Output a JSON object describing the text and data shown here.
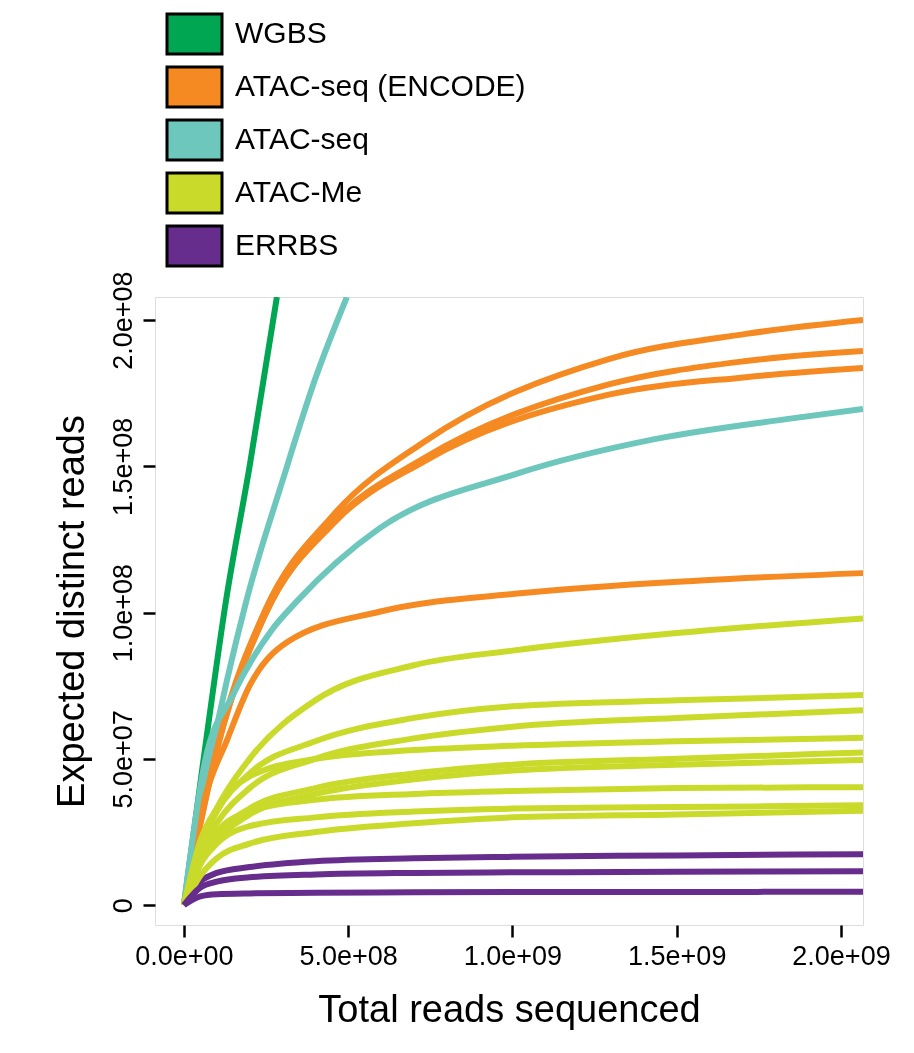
{
  "chart_data": {
    "type": "line",
    "xlabel": "Total reads sequenced",
    "ylabel": "Expected distinct reads",
    "xlim": [
      -88000000,
      2067000000
    ],
    "ylim": [
      -6800000,
      207900000
    ],
    "xticks": [
      {
        "value": 0,
        "label": "0.0e+00"
      },
      {
        "value": 500000000,
        "label": "5.0e+08"
      },
      {
        "value": 1000000000,
        "label": "1.0e+09"
      },
      {
        "value": 1500000000,
        "label": "1.5e+09"
      },
      {
        "value": 2000000000,
        "label": "2.0e+09"
      }
    ],
    "yticks": [
      {
        "value": 0,
        "label": "0"
      },
      {
        "value": 50000000,
        "label": "5.0e+07"
      },
      {
        "value": 100000000,
        "label": "1.0e+08"
      },
      {
        "value": 150000000,
        "label": "1.5e+08"
      },
      {
        "value": 200000000,
        "label": "2.0e+08"
      }
    ],
    "legend": "top left",
    "grid": false,
    "marker": "none",
    "line_style": "solid",
    "series": [
      {
        "name": "WGBS",
        "color": "#00a651",
        "x": [
          0,
          60000000,
          128000000,
          200000000,
          283000000
        ],
        "values": [
          0,
          50000000,
          104000000,
          150000000,
          207900000
        ]
      },
      {
        "name": "ATAC-seq (ENCODE)",
        "color": "#f58a23",
        "x": [
          0,
          107000000,
          246000000,
          455000000,
          734000000,
          1293000000,
          1711000000,
          2067000000
        ],
        "values": [
          0,
          57000000,
          100500000,
          133400000,
          158600000,
          186700000,
          195300000,
          200000000
        ]
      },
      {
        "name": "ATAC-seq",
        "color": "#6dc7bd",
        "x": [
          0,
          80000000,
          190000000,
          300000000,
          400000000,
          496000000
        ],
        "values": [
          0,
          50000000,
          104000000,
          145000000,
          180000000,
          207900000
        ]
      },
      {
        "name": "ATAC-Me",
        "color": "#c9da2a",
        "x": [
          0,
          50000000,
          100000000,
          200000000,
          400000000,
          700000000,
          1000000000,
          1500000000,
          2067000000
        ],
        "values": [
          0,
          20000000,
          33000000,
          50000000,
          70000000,
          82000000,
          87000000,
          93000000,
          98000000
        ]
      },
      {
        "name": "ERRBS",
        "color": "#662d8c",
        "x": [
          0,
          50000000,
          100000000,
          200000000,
          400000000,
          700000000,
          1000000000,
          1500000000,
          2067000000
        ],
        "values": [
          0,
          8000000,
          11000000,
          13000000,
          15000000,
          16000000,
          16500000,
          17000000,
          17400000
        ]
      },
      {
        "color": "#f58a23",
        "x": [
          0,
          107000000,
          246000000,
          455000000,
          734000000,
          1293000000,
          1711000000,
          2067000000
        ],
        "values": [
          0,
          56000000,
          99000000,
          131000000,
          153000000,
          178000000,
          186000000,
          189400000
        ]
      },
      {
        "color": "#f58a23",
        "x": [
          0,
          107000000,
          246000000,
          455000000,
          734000000,
          1293000000,
          1711000000,
          2067000000
        ],
        "values": [
          0,
          56000000,
          99000000,
          130500000,
          151900000,
          174500000,
          180500000,
          183600000
        ]
      },
      {
        "color": "#f58a23",
        "x": [
          0,
          60000000,
          134000000,
          200000000,
          316000000,
          595000000,
          1014000000,
          1572000000,
          2067000000
        ],
        "values": [
          0,
          35000000,
          57200000,
          75000000,
          90000000,
          100300000,
          106500000,
          111000000,
          113500000
        ]
      },
      {
        "color": "#6dc7bd",
        "x": [
          0,
          64000000,
          150000000,
          267000000,
          345000000,
          594000000,
          1014000000,
          1433000000,
          1851000000,
          2067000000
        ],
        "values": [
          0,
          49000000,
          72000000,
          94000000,
          104000000,
          128700000,
          147500000,
          159300000,
          166400000,
          169600000
        ]
      },
      {
        "color": "#c9da2a",
        "x": [
          0,
          50000000,
          100000000,
          200000000,
          400000000,
          700000000,
          1000000000,
          1500000000,
          2067000000
        ],
        "values": [
          0,
          20000000,
          32000000,
          45000000,
          56000000,
          64000000,
          68000000,
          70000000,
          71800000
        ]
      },
      {
        "color": "#c9da2a",
        "x": [
          0,
          50000000,
          100000000,
          200000000,
          400000000,
          700000000,
          1000000000,
          1500000000,
          2067000000
        ],
        "values": [
          0,
          18000000,
          28000000,
          40000000,
          50000000,
          57000000,
          61000000,
          64000000,
          66600000
        ]
      },
      {
        "color": "#c9da2a",
        "x": [
          0,
          50000000,
          100000000,
          200000000,
          400000000,
          700000000,
          1000000000,
          1500000000,
          2067000000
        ],
        "values": [
          0,
          22000000,
          33000000,
          44000000,
          50000000,
          53000000,
          54500000,
          56000000,
          57200000
        ]
      },
      {
        "color": "#c9da2a",
        "x": [
          0,
          50000000,
          100000000,
          200000000,
          400000000,
          700000000,
          1000000000,
          1500000000,
          2067000000
        ],
        "values": [
          0,
          15000000,
          24000000,
          33000000,
          40000000,
          45000000,
          48000000,
          50000000,
          52200000
        ]
      },
      {
        "color": "#c9da2a",
        "x": [
          0,
          50000000,
          100000000,
          200000000,
          400000000,
          700000000,
          1000000000,
          1500000000,
          2067000000
        ],
        "values": [
          0,
          14000000,
          22000000,
          31000000,
          38000000,
          43000000,
          46000000,
          48000000,
          49600000
        ]
      },
      {
        "color": "#c9da2a",
        "x": [
          0,
          50000000,
          100000000,
          200000000,
          400000000,
          700000000,
          1000000000,
          1500000000,
          2067000000
        ],
        "values": [
          0,
          16000000,
          25000000,
          32000000,
          36000000,
          38000000,
          39000000,
          40000000,
          40300000
        ]
      },
      {
        "color": "#c9da2a",
        "x": [
          0,
          50000000,
          100000000,
          200000000,
          400000000,
          700000000,
          1000000000,
          1500000000,
          2067000000
        ],
        "values": [
          0,
          14000000,
          21000000,
          27000000,
          30000000,
          32000000,
          33000000,
          33500000,
          34100000
        ]
      },
      {
        "color": "#c9da2a",
        "x": [
          0,
          50000000,
          100000000,
          200000000,
          400000000,
          700000000,
          1000000000,
          1500000000,
          2067000000
        ],
        "values": [
          0,
          10000000,
          16000000,
          21000000,
          25000000,
          28000000,
          30000000,
          31000000,
          32300000
        ]
      },
      {
        "color": "#662d8c",
        "x": [
          0,
          50000000,
          100000000,
          200000000,
          400000000,
          700000000,
          1000000000,
          1500000000,
          2067000000
        ],
        "values": [
          0,
          6000000,
          8000000,
          9500000,
          10500000,
          11000000,
          11200000,
          11400000,
          11600000
        ]
      },
      {
        "color": "#662d8c",
        "x": [
          0,
          50000000,
          100000000,
          200000000,
          400000000,
          700000000,
          1000000000,
          1500000000,
          2067000000
        ],
        "values": [
          0,
          3000000,
          3700000,
          4000000,
          4200000,
          4400000,
          4500000,
          4500000,
          4600000
        ]
      }
    ]
  }
}
